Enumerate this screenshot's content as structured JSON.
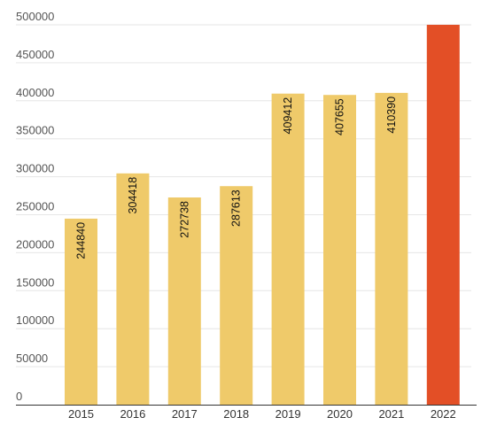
{
  "chart_data": {
    "type": "bar",
    "categories": [
      "2015",
      "2016",
      "2017",
      "2018",
      "2019",
      "2020",
      "2021",
      "2022"
    ],
    "values": [
      244840,
      304418,
      272738,
      287613,
      409412,
      407655,
      410390,
      500000
    ],
    "data_labels": [
      "244840",
      "304418",
      "272738",
      "287613",
      "409412",
      "407655",
      "410390",
      ""
    ],
    "ylim": [
      0,
      500000
    ],
    "yticks": [
      0,
      50000,
      100000,
      150000,
      200000,
      250000,
      300000,
      350000,
      400000,
      450000,
      500000
    ],
    "ytick_labels": [
      "0",
      "50000",
      "100000",
      "150000",
      "200000",
      "250000",
      "300000",
      "350000",
      "400000",
      "450000",
      "500000"
    ],
    "grid": true,
    "legend": "none",
    "colors": {
      "bar": "#efca6a",
      "highlight": "#e34f26",
      "highlight_index": 7
    }
  }
}
